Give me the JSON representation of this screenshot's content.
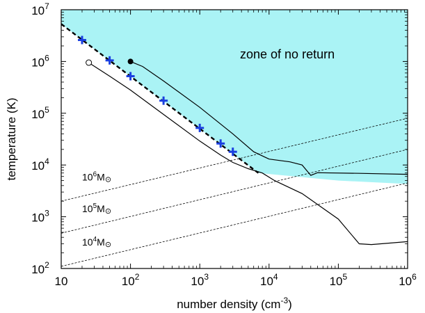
{
  "chart_data": {
    "type": "line",
    "xlabel": "number density (cm",
    "xlabel_sup": "-3",
    "xlabel_close": ")",
    "ylabel": "temperature (K)",
    "x_scale": "log",
    "y_scale": "log",
    "xlim": [
      10,
      1000000
    ],
    "ylim": [
      100,
      10000000
    ],
    "x_ticks": [
      {
        "value": 10,
        "base": "10",
        "exp": ""
      },
      {
        "value": 100,
        "base": "10",
        "exp": "2"
      },
      {
        "value": 1000,
        "base": "10",
        "exp": "3"
      },
      {
        "value": 10000,
        "base": "10",
        "exp": "4"
      },
      {
        "value": 100000,
        "base": "10",
        "exp": "5"
      },
      {
        "value": 1000000,
        "base": "10",
        "exp": "6"
      }
    ],
    "y_ticks": [
      {
        "value": 100,
        "base": "10",
        "exp": "2"
      },
      {
        "value": 1000,
        "base": "10",
        "exp": "3"
      },
      {
        "value": 10000,
        "base": "10",
        "exp": "4"
      },
      {
        "value": 100000,
        "base": "10",
        "exp": "5"
      },
      {
        "value": 1000000,
        "base": "10",
        "exp": "6"
      },
      {
        "value": 10000000,
        "base": "10",
        "exp": "7"
      }
    ],
    "zone": {
      "label": "zone of no return",
      "color": "#aaf3f5",
      "boundary": [
        [
          10,
          5300000
        ],
        [
          7000,
          7000
        ],
        [
          100000,
          5000
        ],
        [
          1000000,
          4300
        ]
      ]
    },
    "dashed_boundary": {
      "color": "#000000",
      "points": [
        [
          10,
          5300000
        ],
        [
          7000,
          7000
        ]
      ]
    },
    "crosses": {
      "color": "#1a3fe0",
      "points": [
        [
          20,
          2600000
        ],
        [
          50,
          1050000
        ],
        [
          100,
          520000
        ],
        [
          300,
          175000
        ],
        [
          1000,
          52000
        ],
        [
          2000,
          26000
        ],
        [
          3000,
          18000
        ]
      ]
    },
    "tracks": [
      {
        "start_marker": "filled",
        "points": [
          [
            100,
            1000000
          ],
          [
            150,
            800000
          ],
          [
            300,
            420000
          ],
          [
            1000,
            130000
          ],
          [
            3000,
            40000
          ],
          [
            6000,
            18000
          ],
          [
            10000,
            13000
          ],
          [
            20000,
            11500
          ],
          [
            30000,
            10000
          ],
          [
            40000,
            6300
          ],
          [
            50000,
            7100
          ],
          [
            200000,
            6900
          ],
          [
            1000000,
            6600
          ]
        ]
      },
      {
        "start_marker": "open",
        "points": [
          [
            25,
            950000
          ],
          [
            50,
            520000
          ],
          [
            100,
            280000
          ],
          [
            300,
            95000
          ],
          [
            1000,
            29000
          ],
          [
            2000,
            15500
          ],
          [
            3000,
            11200
          ],
          [
            5000,
            8500
          ],
          [
            8000,
            7000
          ],
          [
            12000,
            5000
          ],
          [
            30000,
            2800
          ],
          [
            100000,
            900
          ],
          [
            200000,
            300
          ],
          [
            300000,
            290
          ],
          [
            1000000,
            330
          ]
        ]
      }
    ],
    "mass_lines": [
      {
        "label_base": "10",
        "label_exp": "6",
        "label_unit": "M",
        "label_sym": "⊙",
        "points": [
          [
            10,
            2000
          ],
          [
            1000000,
            80000
          ]
        ]
      },
      {
        "label_base": "10",
        "label_exp": "5",
        "label_unit": "M",
        "label_sym": "⊙",
        "points": [
          [
            10,
            480
          ],
          [
            1000000,
            20000
          ]
        ]
      },
      {
        "label_base": "10",
        "label_exp": "4",
        "label_unit": "M",
        "label_sym": "⊙",
        "points": [
          [
            10,
            110
          ],
          [
            1000000,
            4500
          ]
        ]
      }
    ],
    "grid": false,
    "legend": "none"
  }
}
